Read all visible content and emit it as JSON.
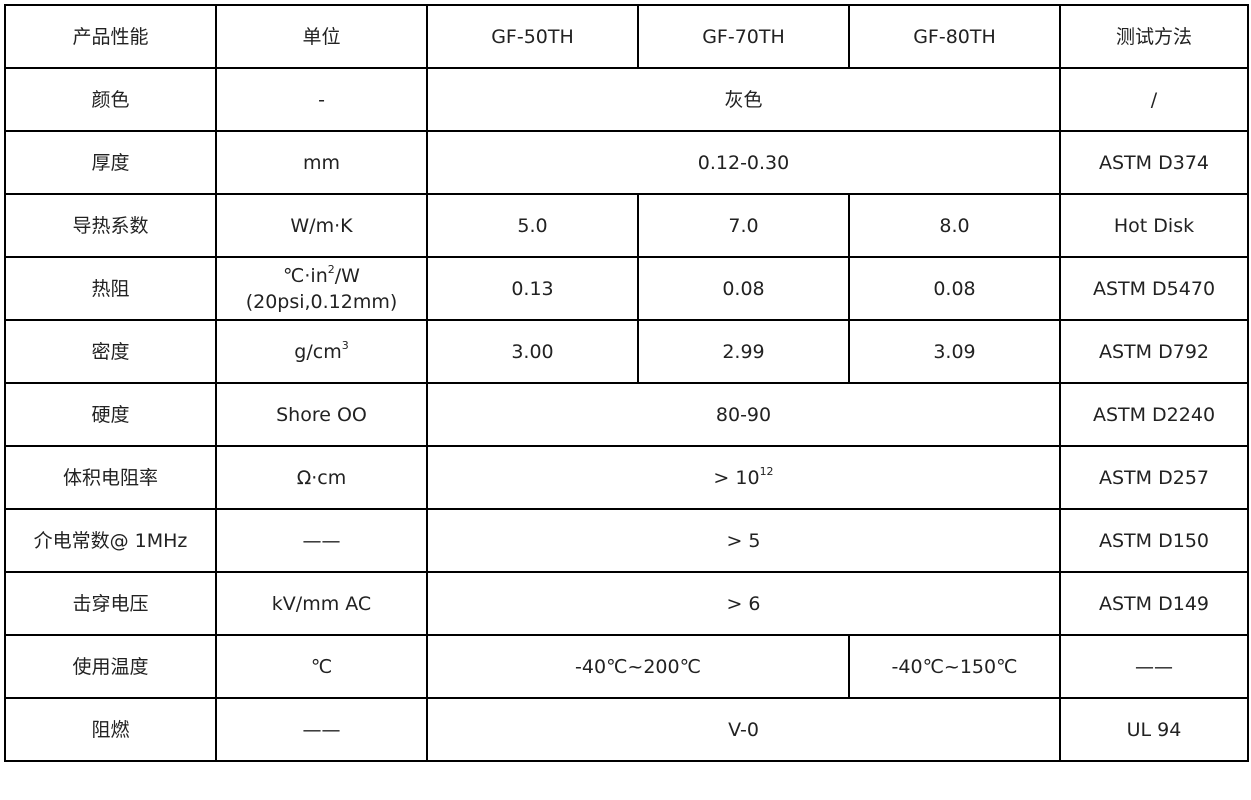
{
  "header": [
    "产品性能",
    "单位",
    "GF-50TH",
    "GF-70TH",
    "GF-80TH",
    "测试方法"
  ],
  "rows": [
    {
      "cells": [
        {
          "text": "颜色"
        },
        {
          "text": "-"
        },
        {
          "text": "灰色",
          "colspan": 3
        },
        {
          "text": "/"
        }
      ]
    },
    {
      "cells": [
        {
          "text": "厚度"
        },
        {
          "text": "mm"
        },
        {
          "text": "0.12-0.30",
          "colspan": 3
        },
        {
          "text": "ASTM D374"
        }
      ]
    },
    {
      "cells": [
        {
          "text": "导热系数"
        },
        {
          "text": "W/m·K"
        },
        {
          "text": "5.0"
        },
        {
          "text": "7.0"
        },
        {
          "text": "8.0"
        },
        {
          "text": "Hot Disk"
        }
      ]
    },
    {
      "cells": [
        {
          "text": "热阻"
        },
        {
          "text": "℃·in",
          "sup": "2",
          "after": "/W",
          "line2": "(20psi,0.12mm)"
        },
        {
          "text": "0.13"
        },
        {
          "text": "0.08"
        },
        {
          "text": "0.08"
        },
        {
          "text": "ASTM D5470"
        }
      ]
    },
    {
      "cells": [
        {
          "text": "密度"
        },
        {
          "text": "g/cm",
          "sup": "3"
        },
        {
          "text": "3.00"
        },
        {
          "text": "2.99"
        },
        {
          "text": "3.09"
        },
        {
          "text": "ASTM D792"
        }
      ]
    },
    {
      "cells": [
        {
          "text": "硬度"
        },
        {
          "text": "Shore OO"
        },
        {
          "text": "80-90",
          "colspan": 3
        },
        {
          "text": "ASTM D2240"
        }
      ]
    },
    {
      "cells": [
        {
          "text": "体积电阻率"
        },
        {
          "text": "Ω·cm"
        },
        {
          "text": "> 10",
          "sup": "12",
          "colspan": 3
        },
        {
          "text": "ASTM D257"
        }
      ]
    },
    {
      "cells": [
        {
          "text": "介电常数@ 1MHz"
        },
        {
          "text": "——"
        },
        {
          "text": "> 5",
          "colspan": 3
        },
        {
          "text": "ASTM D150"
        }
      ]
    },
    {
      "cells": [
        {
          "text": "击穿电压"
        },
        {
          "text": "kV/mm AC"
        },
        {
          "text": "> 6",
          "colspan": 3
        },
        {
          "text": "ASTM D149"
        }
      ]
    },
    {
      "cells": [
        {
          "text": "使用温度"
        },
        {
          "text": "℃"
        },
        {
          "text": "-40℃~200℃",
          "colspan": 2
        },
        {
          "text": "-40℃~150℃"
        },
        {
          "text": "——"
        }
      ]
    },
    {
      "cells": [
        {
          "text": "阻燃"
        },
        {
          "text": "——"
        },
        {
          "text": "V-0",
          "colspan": 3
        },
        {
          "text": "UL 94"
        }
      ]
    }
  ]
}
